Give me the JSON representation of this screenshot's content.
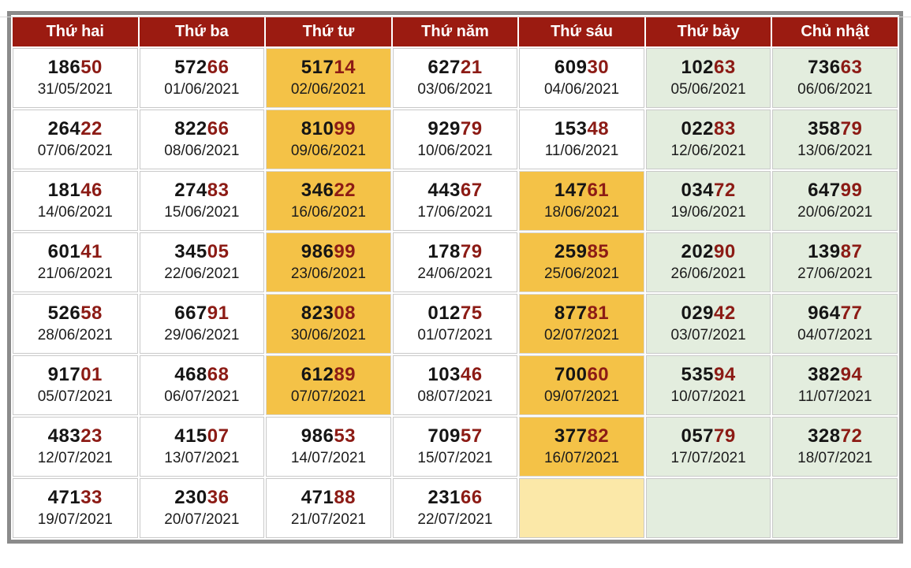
{
  "colors": {
    "header_red": "#9B1B11",
    "special_digit_red": "#8C1B15",
    "highlight_orange": "#F4C247",
    "weekend_green": "#E3EDDE",
    "pending_yellow": "#FBE8A8",
    "outer_border_gray": "#8B8B8B"
  },
  "table": {
    "headers": [
      "Thứ hai",
      "Thứ ba",
      "Thứ tư",
      "Thứ năm",
      "Thứ sáu",
      "Thứ bảy",
      "Chủ nhật"
    ],
    "rows": [
      {
        "cells": [
          {
            "prefix": "186",
            "suffix": "50",
            "date": "31/05/2021",
            "bg": "white"
          },
          {
            "prefix": "572",
            "suffix": "66",
            "date": "01/06/2021",
            "bg": "white"
          },
          {
            "prefix": "517",
            "suffix": "14",
            "date": "02/06/2021",
            "bg": "orange"
          },
          {
            "prefix": "627",
            "suffix": "21",
            "date": "03/06/2021",
            "bg": "white"
          },
          {
            "prefix": "609",
            "suffix": "30",
            "date": "04/06/2021",
            "bg": "white"
          },
          {
            "prefix": "102",
            "suffix": "63",
            "date": "05/06/2021",
            "bg": "green"
          },
          {
            "prefix": "736",
            "suffix": "63",
            "date": "06/06/2021",
            "bg": "green"
          }
        ]
      },
      {
        "cells": [
          {
            "prefix": "264",
            "suffix": "22",
            "date": "07/06/2021",
            "bg": "white"
          },
          {
            "prefix": "822",
            "suffix": "66",
            "date": "08/06/2021",
            "bg": "white"
          },
          {
            "prefix": "810",
            "suffix": "99",
            "date": "09/06/2021",
            "bg": "orange"
          },
          {
            "prefix": "929",
            "suffix": "79",
            "date": "10/06/2021",
            "bg": "white"
          },
          {
            "prefix": "153",
            "suffix": "48",
            "date": "11/06/2021",
            "bg": "white"
          },
          {
            "prefix": "022",
            "suffix": "83",
            "date": "12/06/2021",
            "bg": "green"
          },
          {
            "prefix": "358",
            "suffix": "79",
            "date": "13/06/2021",
            "bg": "green"
          }
        ]
      },
      {
        "cells": [
          {
            "prefix": "181",
            "suffix": "46",
            "date": "14/06/2021",
            "bg": "white"
          },
          {
            "prefix": "274",
            "suffix": "83",
            "date": "15/06/2021",
            "bg": "white"
          },
          {
            "prefix": "346",
            "suffix": "22",
            "date": "16/06/2021",
            "bg": "orange"
          },
          {
            "prefix": "443",
            "suffix": "67",
            "date": "17/06/2021",
            "bg": "white"
          },
          {
            "prefix": "147",
            "suffix": "61",
            "date": "18/06/2021",
            "bg": "orange"
          },
          {
            "prefix": "034",
            "suffix": "72",
            "date": "19/06/2021",
            "bg": "green"
          },
          {
            "prefix": "647",
            "suffix": "99",
            "date": "20/06/2021",
            "bg": "green"
          }
        ]
      },
      {
        "cells": [
          {
            "prefix": "601",
            "suffix": "41",
            "date": "21/06/2021",
            "bg": "white"
          },
          {
            "prefix": "345",
            "suffix": "05",
            "date": "22/06/2021",
            "bg": "white"
          },
          {
            "prefix": "986",
            "suffix": "99",
            "date": "23/06/2021",
            "bg": "orange"
          },
          {
            "prefix": "178",
            "suffix": "79",
            "date": "24/06/2021",
            "bg": "white"
          },
          {
            "prefix": "259",
            "suffix": "85",
            "date": "25/06/2021",
            "bg": "orange"
          },
          {
            "prefix": "202",
            "suffix": "90",
            "date": "26/06/2021",
            "bg": "green"
          },
          {
            "prefix": "139",
            "suffix": "87",
            "date": "27/06/2021",
            "bg": "green"
          }
        ]
      },
      {
        "cells": [
          {
            "prefix": "526",
            "suffix": "58",
            "date": "28/06/2021",
            "bg": "white"
          },
          {
            "prefix": "667",
            "suffix": "91",
            "date": "29/06/2021",
            "bg": "white"
          },
          {
            "prefix": "823",
            "suffix": "08",
            "date": "30/06/2021",
            "bg": "orange"
          },
          {
            "prefix": "012",
            "suffix": "75",
            "date": "01/07/2021",
            "bg": "white"
          },
          {
            "prefix": "877",
            "suffix": "81",
            "date": "02/07/2021",
            "bg": "orange"
          },
          {
            "prefix": "029",
            "suffix": "42",
            "date": "03/07/2021",
            "bg": "green"
          },
          {
            "prefix": "964",
            "suffix": "77",
            "date": "04/07/2021",
            "bg": "green"
          }
        ]
      },
      {
        "cells": [
          {
            "prefix": "917",
            "suffix": "01",
            "date": "05/07/2021",
            "bg": "white"
          },
          {
            "prefix": "468",
            "suffix": "68",
            "date": "06/07/2021",
            "bg": "white"
          },
          {
            "prefix": "612",
            "suffix": "89",
            "date": "07/07/2021",
            "bg": "orange"
          },
          {
            "prefix": "103",
            "suffix": "46",
            "date": "08/07/2021",
            "bg": "white"
          },
          {
            "prefix": "700",
            "suffix": "60",
            "date": "09/07/2021",
            "bg": "orange"
          },
          {
            "prefix": "535",
            "suffix": "94",
            "date": "10/07/2021",
            "bg": "green"
          },
          {
            "prefix": "382",
            "suffix": "94",
            "date": "11/07/2021",
            "bg": "green"
          }
        ]
      },
      {
        "cells": [
          {
            "prefix": "483",
            "suffix": "23",
            "date": "12/07/2021",
            "bg": "white"
          },
          {
            "prefix": "415",
            "suffix": "07",
            "date": "13/07/2021",
            "bg": "white"
          },
          {
            "prefix": "986",
            "suffix": "53",
            "date": "14/07/2021",
            "bg": "white"
          },
          {
            "prefix": "709",
            "suffix": "57",
            "date": "15/07/2021",
            "bg": "white"
          },
          {
            "prefix": "377",
            "suffix": "82",
            "date": "16/07/2021",
            "bg": "orange"
          },
          {
            "prefix": "057",
            "suffix": "79",
            "date": "17/07/2021",
            "bg": "green"
          },
          {
            "prefix": "328",
            "suffix": "72",
            "date": "18/07/2021",
            "bg": "green"
          }
        ]
      },
      {
        "cells": [
          {
            "prefix": "471",
            "suffix": "33",
            "date": "19/07/2021",
            "bg": "white"
          },
          {
            "prefix": "230",
            "suffix": "36",
            "date": "20/07/2021",
            "bg": "white"
          },
          {
            "prefix": "471",
            "suffix": "88",
            "date": "21/07/2021",
            "bg": "white"
          },
          {
            "prefix": "231",
            "suffix": "66",
            "date": "22/07/2021",
            "bg": "white"
          },
          {
            "prefix": "",
            "suffix": "",
            "date": "",
            "bg": "yellow"
          },
          {
            "prefix": "",
            "suffix": "",
            "date": "",
            "bg": "green"
          },
          {
            "prefix": "",
            "suffix": "",
            "date": "",
            "bg": "green"
          }
        ]
      }
    ]
  }
}
